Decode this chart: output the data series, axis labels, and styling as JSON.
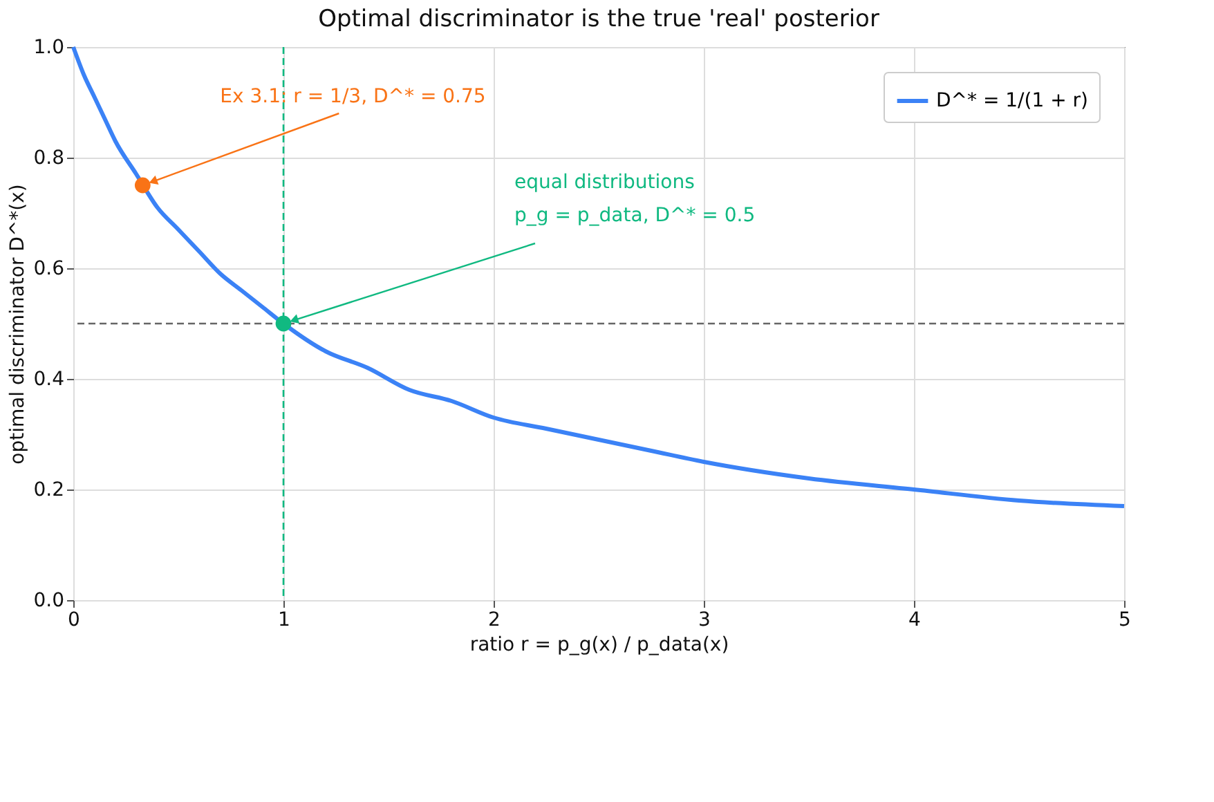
{
  "chart_data": {
    "type": "line",
    "title": "Optimal discriminator is the true 'real' posterior",
    "xlabel": "ratio  r = p_g(x) / p_data(x)",
    "ylabel": "optimal discriminator  D^*(x)",
    "series": [
      {
        "name": "D^* = 1/(1 + r)",
        "color": "#3b82f6",
        "x": [
          0,
          0.05,
          0.1,
          0.15,
          0.2,
          0.3,
          0.4,
          0.5,
          0.6,
          0.7,
          0.8,
          0.9,
          1,
          1.2,
          1.4,
          1.6,
          1.8,
          2,
          2.25,
          2.5,
          2.75,
          3,
          3.5,
          4,
          4.5,
          5
        ],
        "values": [
          1,
          0.95,
          0.91,
          0.87,
          0.83,
          0.77,
          0.71,
          0.67,
          0.63,
          0.59,
          0.56,
          0.53,
          0.5,
          0.45,
          0.42,
          0.38,
          0.36,
          0.33,
          0.31,
          0.29,
          0.27,
          0.25,
          0.22,
          0.2,
          0.18,
          0.17
        ]
      },
      {
        "type": "scatter",
        "marker": "circle",
        "color": "#f97316",
        "x": [
          0.33
        ],
        "values": [
          0.75
        ]
      },
      {
        "type": "scatter",
        "marker": "circle",
        "color": "#10b981",
        "x": [
          1
        ],
        "values": [
          0.5
        ]
      }
    ],
    "annotations": [
      {
        "text": "Ex 3.1: r = 1/3, D^* = 0.75",
        "x": 0.33,
        "y": 0.75
      },
      {
        "text": "equal distributions\np_g = p_data, D^* = 0.5",
        "x": 1,
        "y": 0.5
      }
    ],
    "ref_lines": [
      {
        "axis": "x",
        "value": 1,
        "color": "#10b981",
        "line_style": "dashed"
      },
      {
        "axis": "y",
        "value": 0.5,
        "color": "#666666",
        "line_style": "dashed"
      }
    ],
    "xlim": [
      0,
      5
    ],
    "xticks": [
      0,
      1,
      2,
      3,
      4,
      5
    ],
    "ylim": [
      0,
      1
    ],
    "yticks": [
      {
        "value": 0,
        "label": "0.0"
      },
      0.2,
      0.4,
      0.6,
      0.8,
      {
        "value": 1,
        "label": "1.0"
      }
    ],
    "grid": true,
    "legend": "top right",
    "line_style": "solid"
  }
}
